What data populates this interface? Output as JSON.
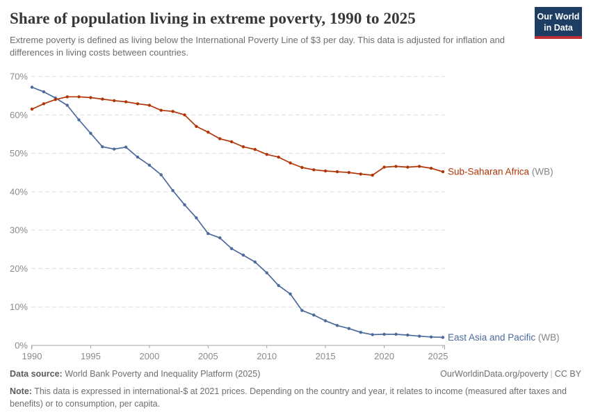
{
  "header": {
    "title": "Share of population living in extreme poverty, 1990 to 2025",
    "subtitle": "Extreme poverty is defined as living below the International Poverty Line of $3 per day. This data is adjusted for inflation and differences in living costs between countries.",
    "logo": {
      "line1": "Our World",
      "line2": "in Data",
      "bg": "#1d3d63",
      "accent": "#bf3036"
    }
  },
  "chart_data": {
    "type": "line",
    "title": "Share of population living in extreme poverty, 1990 to 2025",
    "x": [
      1990,
      1991,
      1992,
      1993,
      1994,
      1995,
      1996,
      1997,
      1998,
      1999,
      2000,
      2001,
      2002,
      2003,
      2004,
      2005,
      2006,
      2007,
      2008,
      2009,
      2010,
      2011,
      2012,
      2013,
      2014,
      2015,
      2016,
      2017,
      2018,
      2019,
      2020,
      2021,
      2022,
      2023,
      2024,
      2025
    ],
    "series": [
      {
        "name": "East Asia and Pacific",
        "suffix": " (WB)",
        "color": "#4c6a9c",
        "values": [
          67.2,
          66.0,
          64.4,
          62.5,
          58.7,
          55.2,
          51.7,
          51.1,
          51.6,
          49.0,
          46.9,
          44.4,
          40.3,
          36.6,
          33.2,
          29.1,
          28.0,
          25.2,
          23.5,
          21.7,
          18.9,
          15.6,
          13.4,
          9.1,
          7.9,
          6.4,
          5.2,
          4.4,
          3.4,
          2.8,
          2.9,
          2.9,
          2.7,
          2.4,
          2.2,
          2.1
        ]
      },
      {
        "name": "Sub-Saharan Africa",
        "suffix": " (WB)",
        "color": "#b13507",
        "values": [
          61.5,
          62.9,
          64.0,
          64.7,
          64.7,
          64.5,
          64.1,
          63.7,
          63.4,
          62.9,
          62.5,
          61.2,
          60.9,
          60.0,
          57.0,
          55.5,
          53.8,
          53.0,
          51.7,
          51.0,
          49.7,
          49.0,
          47.5,
          46.3,
          45.7,
          45.4,
          45.2,
          45.0,
          44.6,
          44.3,
          46.4,
          46.6,
          46.4,
          46.6,
          46.1,
          45.2
        ]
      }
    ],
    "xlabel": "",
    "ylabel": "",
    "xlim": [
      1990,
      2025
    ],
    "ylim": [
      0,
      70
    ],
    "xticks": [
      1990,
      1995,
      2000,
      2005,
      2010,
      2015,
      2020,
      2025
    ],
    "yticks": [
      0,
      10,
      20,
      30,
      40,
      50,
      60,
      70
    ],
    "ytick_suffix": "%",
    "grid": "horizontal-dashed",
    "legend_position": "end-of-line",
    "suffix_color": "#858585",
    "grid_color": "#dcdcdc",
    "axis_color": "#a3a3a3"
  },
  "footer": {
    "datasource_label": "Data source:",
    "datasource_value": " World Bank Poverty and Inequality Platform (2025)",
    "link": "OurWorldinData.org/poverty",
    "separator": "|",
    "license": "CC BY",
    "note_label": "Note:",
    "note_value": " This data is expressed in international-$ at 2021 prices. Depending on the country and year, it relates to income (measured after taxes and benefits) or to consumption, per capita."
  }
}
